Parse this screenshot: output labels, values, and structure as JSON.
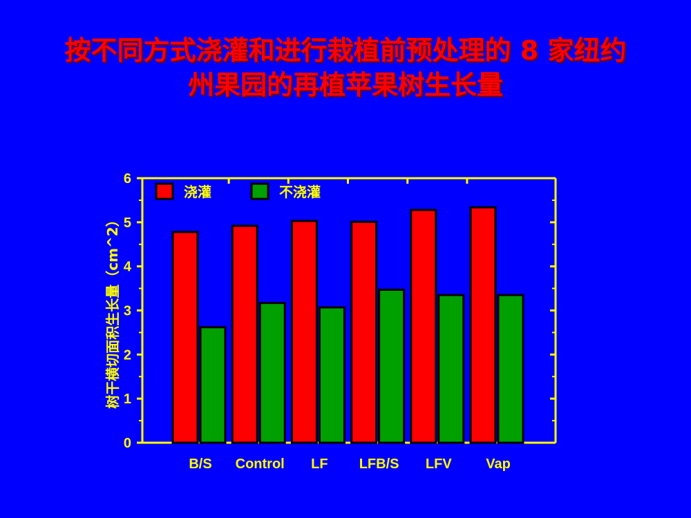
{
  "slide": {
    "title_line1": "按不同方式浇灌和进行栽植前预处理的 8 家纽约",
    "title_line2": "州果园的再植苹果树生长量"
  },
  "colors": {
    "background": "#0000ff",
    "title": "#ff0000",
    "axis": "#ffff00",
    "series_irrigated": "#ff0000",
    "series_not_irrigated": "#00a000"
  },
  "chart_data": {
    "type": "bar",
    "title": "",
    "xlabel": "",
    "ylabel": "树干横切面积生长量（cm^2）",
    "ylim": [
      0,
      6
    ],
    "yticks": [
      "0",
      "1",
      "2",
      "3",
      "4",
      "5",
      "6"
    ],
    "categories": [
      "B/S",
      "Control",
      "LF",
      "LFB/S",
      "LFV",
      "Vap"
    ],
    "series": [
      {
        "name": "浇灌",
        "values": [
          4.78,
          4.92,
          5.03,
          5.01,
          5.28,
          5.34
        ]
      },
      {
        "name": "不浇灌",
        "values": [
          2.62,
          3.17,
          3.07,
          3.47,
          3.35,
          3.35
        ]
      }
    ],
    "legend": "top-left",
    "grid": false
  }
}
